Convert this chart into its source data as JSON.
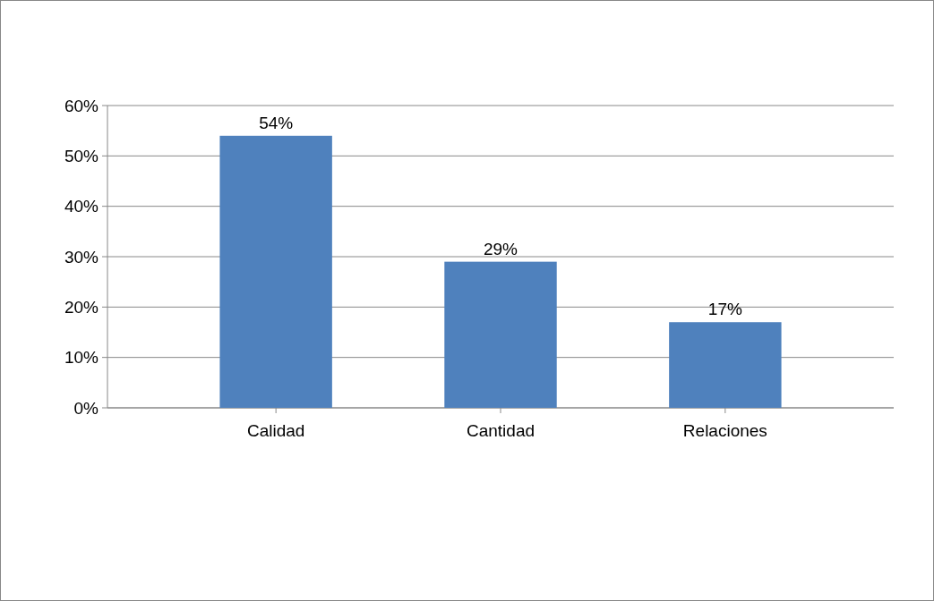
{
  "chart_data": {
    "type": "bar",
    "categories": [
      "Calidad",
      "Cantidad",
      "Relaciones"
    ],
    "values": [
      54,
      29,
      17
    ],
    "color": "#4f81bd",
    "value_labels": [
      "54%",
      "29%",
      "17%"
    ],
    "ylim": [
      0,
      60
    ],
    "yticks": [
      {
        "value": 0,
        "label": "0%"
      },
      {
        "value": 10,
        "label": "10%"
      },
      {
        "value": 20,
        "label": "20%"
      },
      {
        "value": 30,
        "label": "30%"
      },
      {
        "value": 40,
        "label": "40%"
      },
      {
        "value": 50,
        "label": "50%"
      },
      {
        "value": 60,
        "label": "60%"
      }
    ],
    "grid": "y"
  }
}
